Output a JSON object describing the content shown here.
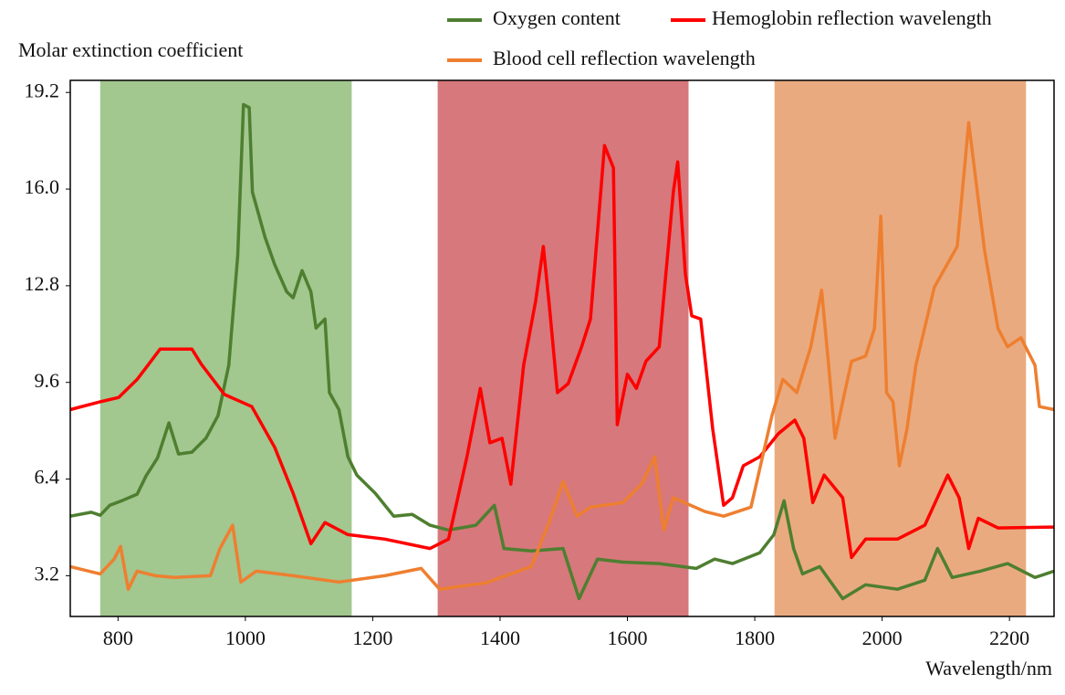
{
  "chart_data": {
    "type": "line",
    "y_label": "Molar extinction coefficient",
    "x_label": "Wavelength/nm",
    "xlim": [
      725,
      2270
    ],
    "ylim": [
      1.85,
      19.6
    ],
    "xticks": [
      800,
      1000,
      1200,
      1400,
      1600,
      1800,
      2000,
      2200
    ],
    "yticks": [
      {
        "value": 3.2,
        "label": "3.2"
      },
      {
        "value": 6.4,
        "label": "6.4"
      },
      {
        "value": 9.6,
        "label": "9.6"
      },
      {
        "value": 12.8,
        "label": "12.8"
      },
      {
        "value": 16,
        "label": "16.0"
      },
      {
        "value": 19.2,
        "label": "19.2"
      }
    ],
    "bands": [
      {
        "x": [
          772,
          1167
        ],
        "color": "#a2c78f"
      },
      {
        "x": [
          1302,
          1696
        ],
        "color": "#d6787c"
      },
      {
        "x": [
          1831,
          2226
        ],
        "color": "#eaaa7f"
      }
    ],
    "series": [
      {
        "name": "Oxygen content",
        "color": "#4e7f30",
        "x": [
          725,
          758,
          772,
          787,
          808,
          830,
          844,
          862,
          880,
          895,
          916,
          938,
          957,
          974,
          988,
          997,
          1006,
          1011,
          1031,
          1046,
          1065,
          1075,
          1089,
          1103,
          1111,
          1125,
          1132,
          1147,
          1161,
          1175,
          1204,
          1233,
          1262,
          1290,
          1319,
          1362,
          1391,
          1406,
          1449,
          1499,
          1524,
          1553,
          1593,
          1650,
          1708,
          1737,
          1765,
          1808,
          1830,
          1846,
          1861,
          1875,
          1902,
          1938,
          1974,
          2024,
          2067,
          2087,
          2110,
          2154,
          2197,
          2240,
          2270
        ],
        "values": [
          5.17,
          5.3,
          5.2,
          5.53,
          5.7,
          5.9,
          6.5,
          7.1,
          8.26,
          7.23,
          7.29,
          7.75,
          8.5,
          10.17,
          13.8,
          18.8,
          18.7,
          15.9,
          14.4,
          13.5,
          12.6,
          12.4,
          13.3,
          12.6,
          11.4,
          11.7,
          9.26,
          8.7,
          7.14,
          6.53,
          5.93,
          5.17,
          5.23,
          4.87,
          4.71,
          4.87,
          5.53,
          4.1,
          4.02,
          4.1,
          2.44,
          3.75,
          3.65,
          3.6,
          3.44,
          3.75,
          3.6,
          3.96,
          4.56,
          5.68,
          4.1,
          3.26,
          3.5,
          2.44,
          2.9,
          2.75,
          3.05,
          4.1,
          3.14,
          3.35,
          3.6,
          3.14,
          3.35
        ]
      },
      {
        "name": "Hemoglobin reflection wavelength",
        "color": "#ff0000",
        "x": [
          725,
          772,
          801,
          830,
          866,
          916,
          931,
          967,
          1010,
          1046,
          1075,
          1103,
          1125,
          1161,
          1219,
          1290,
          1319,
          1348,
          1369,
          1384,
          1403,
          1417,
          1437,
          1456,
          1468,
          1478,
          1490,
          1507,
          1528,
          1542,
          1564,
          1578,
          1584,
          1600,
          1614,
          1629,
          1650,
          1672,
          1679,
          1691,
          1701,
          1715,
          1734,
          1751,
          1765,
          1782,
          1808,
          1837,
          1863,
          1877,
          1891,
          1909,
          1938,
          1952,
          1974,
          2024,
          2067,
          2103,
          2121,
          2136,
          2151,
          2182,
          2270
        ],
        "values": [
          8.7,
          8.96,
          9.1,
          9.7,
          10.7,
          10.7,
          10.2,
          9.2,
          8.8,
          7.45,
          5.93,
          4.26,
          4.96,
          4.56,
          4.41,
          4.1,
          4.41,
          7.14,
          9.4,
          7.6,
          7.75,
          6.23,
          10.17,
          12.3,
          14.1,
          12.0,
          9.26,
          9.56,
          10.78,
          11.7,
          17.44,
          16.7,
          8.2,
          9.87,
          9.4,
          10.3,
          10.78,
          15.9,
          16.9,
          13.2,
          11.8,
          11.7,
          8.05,
          5.53,
          5.78,
          6.84,
          7.14,
          7.9,
          8.35,
          7.75,
          5.62,
          6.53,
          5.78,
          3.8,
          4.41,
          4.41,
          4.87,
          6.53,
          5.78,
          4.1,
          5.1,
          4.78,
          4.81
        ]
      },
      {
        "name": "Blood cell reflection wavelength",
        "color": "#ee7f30",
        "x": [
          725,
          772,
          794,
          804,
          816,
          830,
          859,
          888,
          945,
          960,
          980,
          993,
          1017,
          1075,
          1147,
          1219,
          1276,
          1305,
          1377,
          1449,
          1478,
          1499,
          1521,
          1542,
          1593,
          1622,
          1643,
          1657,
          1672,
          1722,
          1751,
          1794,
          1827,
          1844,
          1866,
          1888,
          1905,
          1916,
          1926,
          1938,
          1952,
          1974,
          1988,
          1998,
          2007,
          2017,
          2027,
          2039,
          2053,
          2082,
          2118,
          2136,
          2161,
          2182,
          2197,
          2218,
          2240,
          2247,
          2270
        ],
        "values": [
          3.5,
          3.26,
          3.75,
          4.17,
          2.75,
          3.35,
          3.2,
          3.14,
          3.2,
          4.1,
          4.87,
          2.99,
          3.35,
          3.2,
          2.99,
          3.2,
          3.44,
          2.75,
          2.96,
          3.5,
          5.02,
          6.32,
          5.17,
          5.47,
          5.62,
          6.23,
          7.14,
          4.71,
          5.78,
          5.32,
          5.17,
          5.47,
          8.5,
          9.7,
          9.26,
          10.78,
          12.65,
          10.17,
          7.75,
          8.96,
          10.3,
          10.47,
          11.38,
          15.1,
          9.26,
          8.96,
          6.84,
          8.05,
          10.17,
          12.75,
          14.1,
          18.2,
          13.96,
          11.38,
          10.78,
          11.08,
          10.17,
          8.8,
          8.7
        ]
      }
    ]
  }
}
